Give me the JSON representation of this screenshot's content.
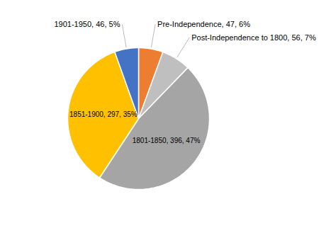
{
  "chart_data": {
    "type": "pie",
    "categories": [
      "Pre-Independence, 47, 6%",
      "Post-Independence to 1800, 56, 7%",
      "1801-1850, 396, 47%",
      "1851-1900, 297, 35%",
      "1901-1950, 46, 5%"
    ],
    "values": [
      47,
      56,
      396,
      297,
      46
    ],
    "colors": [
      "#ed7d31",
      "#bfbfbf",
      "#a5a5a5",
      "#ffc000",
      "#4472c4"
    ]
  }
}
